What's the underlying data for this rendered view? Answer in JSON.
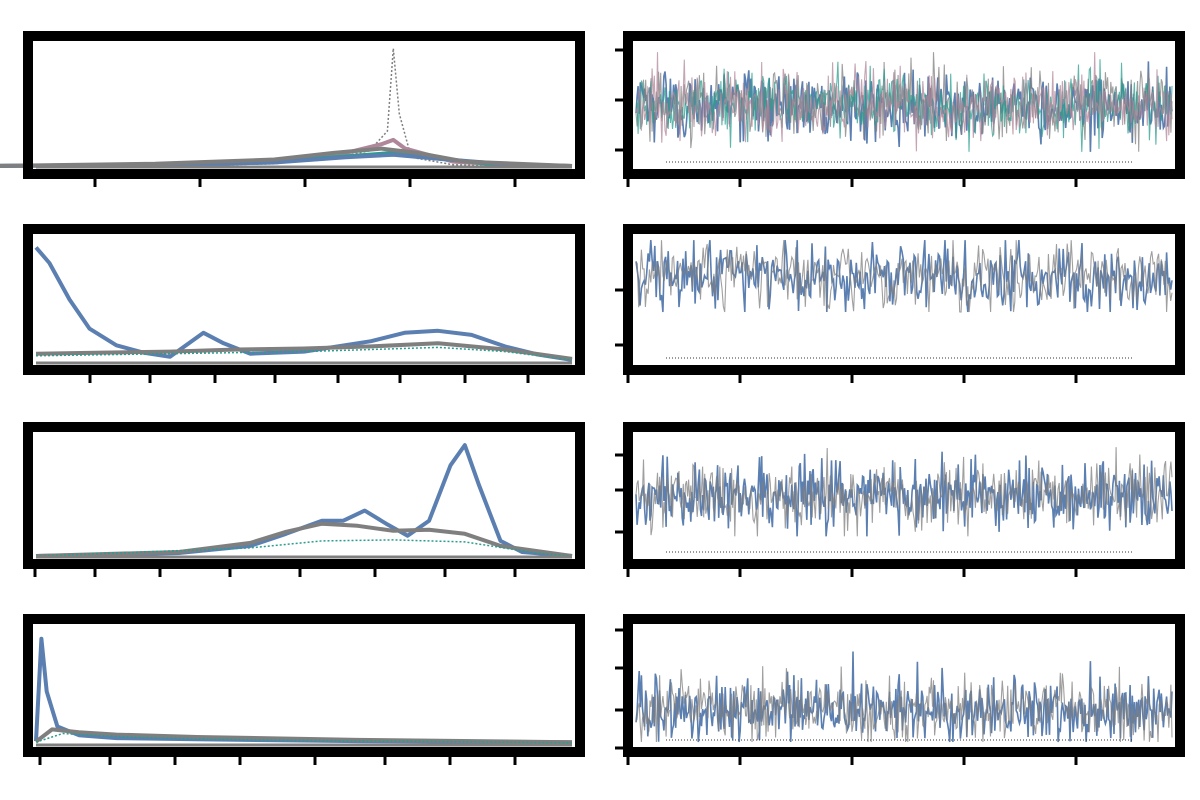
{
  "colors": {
    "primary": "#5b7fb0",
    "gray": "#7f7f7f",
    "teal": "#2a9d8f",
    "mauve": "#b0879a",
    "frame": "#000000"
  },
  "chart_data": [
    {
      "id": "p1-density",
      "type": "line",
      "title": "",
      "xlim": [
        -4,
        0.5
      ],
      "ylim": [
        0,
        28
      ],
      "xticks": [],
      "series": [
        {
          "color": "#7f7f7f",
          "style": "dotted",
          "values": [
            [
              -4.4,
              0
            ],
            [
              -3,
              0
            ],
            [
              -2,
              0.5
            ],
            [
              -1.5,
              1.8
            ],
            [
              -1.2,
              3.5
            ],
            [
              -1.05,
              8
            ],
            [
              -1,
              27
            ],
            [
              -0.95,
              12
            ],
            [
              -0.85,
              2
            ],
            [
              -0.5,
              0.3
            ],
            [
              0,
              0
            ],
            [
              0.5,
              0
            ]
          ]
        },
        {
          "color": "#b0879a",
          "style": "solid",
          "values": [
            [
              -4.4,
              0
            ],
            [
              -3,
              0.3
            ],
            [
              -2,
              1.2
            ],
            [
              -1.4,
              3
            ],
            [
              -1.1,
              5
            ],
            [
              -1,
              6
            ],
            [
              -0.9,
              4
            ],
            [
              -0.5,
              1
            ],
            [
              0,
              0.2
            ],
            [
              0.5,
              0
            ]
          ]
        },
        {
          "color": "#2a9d8f",
          "style": "solid",
          "values": [
            [
              -4.4,
              0
            ],
            [
              -3,
              0.3
            ],
            [
              -2,
              1
            ],
            [
              -1.3,
              2.4
            ],
            [
              -1,
              3
            ],
            [
              -0.7,
              2
            ],
            [
              -0.2,
              0.5
            ],
            [
              0.5,
              0
            ]
          ]
        },
        {
          "color": "#5b7fb0",
          "style": "solid",
          "values": [
            [
              -4.4,
              0
            ],
            [
              -3,
              0.2
            ],
            [
              -2,
              0.8
            ],
            [
              -1.4,
              2
            ],
            [
              -1,
              2.6
            ],
            [
              -0.6,
              1.6
            ],
            [
              0,
              0.3
            ],
            [
              0.5,
              0
            ]
          ]
        },
        {
          "color": "#7f7f7f",
          "style": "solid",
          "values": [
            [
              -4.4,
              0
            ],
            [
              -3,
              0.5
            ],
            [
              -2,
              1.5
            ],
            [
              -1.5,
              3
            ],
            [
              -1.1,
              4
            ],
            [
              -0.8,
              3
            ],
            [
              -0.4,
              1
            ],
            [
              0.5,
              0
            ]
          ]
        }
      ]
    },
    {
      "id": "p1-trace",
      "type": "line",
      "title": "",
      "xlim": [
        0,
        500
      ],
      "ylim": [
        -3,
        3
      ],
      "trace": {
        "points": 500,
        "mean": 0,
        "sd": 0.8,
        "peak": 2.6,
        "trough": -2.3
      },
      "colors_order": [
        "#5b7fb0",
        "#7f7f7f",
        "#2a9d8f",
        "#b0879a"
      ]
    },
    {
      "id": "p2-density",
      "type": "line",
      "title": "",
      "xlim": [
        0,
        8
      ],
      "ylim": [
        0,
        12
      ],
      "series": [
        {
          "color": "#5b7fb0",
          "style": "solid",
          "values": [
            [
              0,
              11
            ],
            [
              0.2,
              9.5
            ],
            [
              0.5,
              6
            ],
            [
              0.8,
              3.2
            ],
            [
              1.2,
              1.6
            ],
            [
              1.6,
              0.9
            ],
            [
              2,
              0.5
            ],
            [
              2.5,
              2.8
            ],
            [
              2.8,
              1.8
            ],
            [
              3.2,
              0.8
            ],
            [
              4,
              1
            ],
            [
              5,
              2
            ],
            [
              5.5,
              2.8
            ],
            [
              6,
              3
            ],
            [
              6.5,
              2.6
            ],
            [
              7,
              1.5
            ],
            [
              7.5,
              0.7
            ],
            [
              8,
              0.2
            ]
          ]
        },
        {
          "color": "#7f7f7f",
          "style": "solid",
          "values": [
            [
              0,
              0.8
            ],
            [
              1,
              0.9
            ],
            [
              2,
              1
            ],
            [
              3,
              1.2
            ],
            [
              4,
              1.3
            ],
            [
              5,
              1.5
            ],
            [
              6,
              1.8
            ],
            [
              7,
              1.2
            ],
            [
              8,
              0.3
            ]
          ]
        },
        {
          "color": "#2a9d8f",
          "style": "dotted",
          "values": [
            [
              0,
              0.6
            ],
            [
              1,
              0.7
            ],
            [
              2,
              0.8
            ],
            [
              3,
              0.9
            ],
            [
              4,
              1
            ],
            [
              5,
              1.2
            ],
            [
              6,
              1.4
            ],
            [
              7,
              1
            ],
            [
              8,
              0.2
            ]
          ]
        }
      ]
    },
    {
      "id": "p2-trace",
      "type": "line",
      "title": "",
      "xlim": [
        0,
        500
      ],
      "ylim": [
        0,
        8
      ],
      "trace": {
        "points": 400,
        "mean": 5.5,
        "sd": 1.1,
        "peak": 7.8,
        "trough": 3.2
      },
      "colors_order": [
        "#5b7fb0",
        "#7f7f7f"
      ]
    },
    {
      "id": "p3-density",
      "type": "line",
      "title": "",
      "xlim": [
        -3,
        4.5
      ],
      "ylim": [
        0,
        12
      ],
      "series": [
        {
          "color": "#5b7fb0",
          "style": "solid",
          "values": [
            [
              -3,
              0
            ],
            [
              -1,
              0.3
            ],
            [
              0,
              1
            ],
            [
              0.5,
              2.2
            ],
            [
              1,
              3.5
            ],
            [
              1.3,
              3.5
            ],
            [
              1.6,
              4.5
            ],
            [
              1.9,
              3.2
            ],
            [
              2.2,
              2
            ],
            [
              2.5,
              3.5
            ],
            [
              2.8,
              9
            ],
            [
              3,
              11
            ],
            [
              3.2,
              7
            ],
            [
              3.5,
              1.5
            ],
            [
              3.8,
              0.4
            ],
            [
              4.5,
              0
            ]
          ]
        },
        {
          "color": "#7f7f7f",
          "style": "solid",
          "values": [
            [
              -3,
              0
            ],
            [
              -1,
              0.4
            ],
            [
              0,
              1.3
            ],
            [
              0.5,
              2.4
            ],
            [
              1,
              3.2
            ],
            [
              1.5,
              3
            ],
            [
              2,
              2.5
            ],
            [
              2.5,
              2.6
            ],
            [
              3,
              2.2
            ],
            [
              3.5,
              1
            ],
            [
              4.5,
              0
            ]
          ]
        },
        {
          "color": "#2a9d8f",
          "style": "dotted",
          "values": [
            [
              -3,
              0
            ],
            [
              0,
              0.8
            ],
            [
              1,
              1.5
            ],
            [
              2,
              1.6
            ],
            [
              3,
              1.4
            ],
            [
              4,
              0.3
            ],
            [
              4.5,
              0
            ]
          ]
        }
      ]
    },
    {
      "id": "p3-trace",
      "type": "line",
      "title": "",
      "xlim": [
        0,
        500
      ],
      "ylim": [
        -4,
        4
      ],
      "trace": {
        "points": 500,
        "mean": 0,
        "sd": 1.1,
        "peak": 3.2,
        "trough": -2.7
      },
      "colors_order": [
        "#5b7fb0",
        "#7f7f7f"
      ]
    },
    {
      "id": "p4-density",
      "type": "line",
      "title": "",
      "xlim": [
        0,
        10
      ],
      "ylim": [
        0,
        20
      ],
      "series": [
        {
          "color": "#5b7fb0",
          "style": "solid",
          "values": [
            [
              0,
              0.5
            ],
            [
              0.1,
              18
            ],
            [
              0.2,
              9
            ],
            [
              0.4,
              3
            ],
            [
              0.8,
              1.5
            ],
            [
              1.5,
              1
            ],
            [
              3,
              0.8
            ],
            [
              6,
              0.5
            ],
            [
              10,
              0.3
            ]
          ]
        },
        {
          "color": "#7f7f7f",
          "style": "solid",
          "values": [
            [
              0,
              0.4
            ],
            [
              0.3,
              2.5
            ],
            [
              0.8,
              2
            ],
            [
              1.5,
              1.6
            ],
            [
              3,
              1.2
            ],
            [
              6,
              0.7
            ],
            [
              10,
              0.3
            ]
          ]
        },
        {
          "color": "#2a9d8f",
          "style": "dotted",
          "values": [
            [
              0,
              0.3
            ],
            [
              0.5,
              1.8
            ],
            [
              1,
              1.5
            ],
            [
              2,
              1.1
            ],
            [
              4,
              0.7
            ],
            [
              10,
              0.2
            ]
          ]
        }
      ]
    },
    {
      "id": "p4-trace",
      "type": "line",
      "title": "",
      "xlim": [
        0,
        500
      ],
      "ylim": [
        0,
        12
      ],
      "trace": {
        "points": 500,
        "mean": 3.5,
        "sd": 1.6,
        "peak": 11.5,
        "trough": 0.2
      },
      "colors_order": [
        "#5b7fb0",
        "#7f7f7f"
      ]
    }
  ]
}
